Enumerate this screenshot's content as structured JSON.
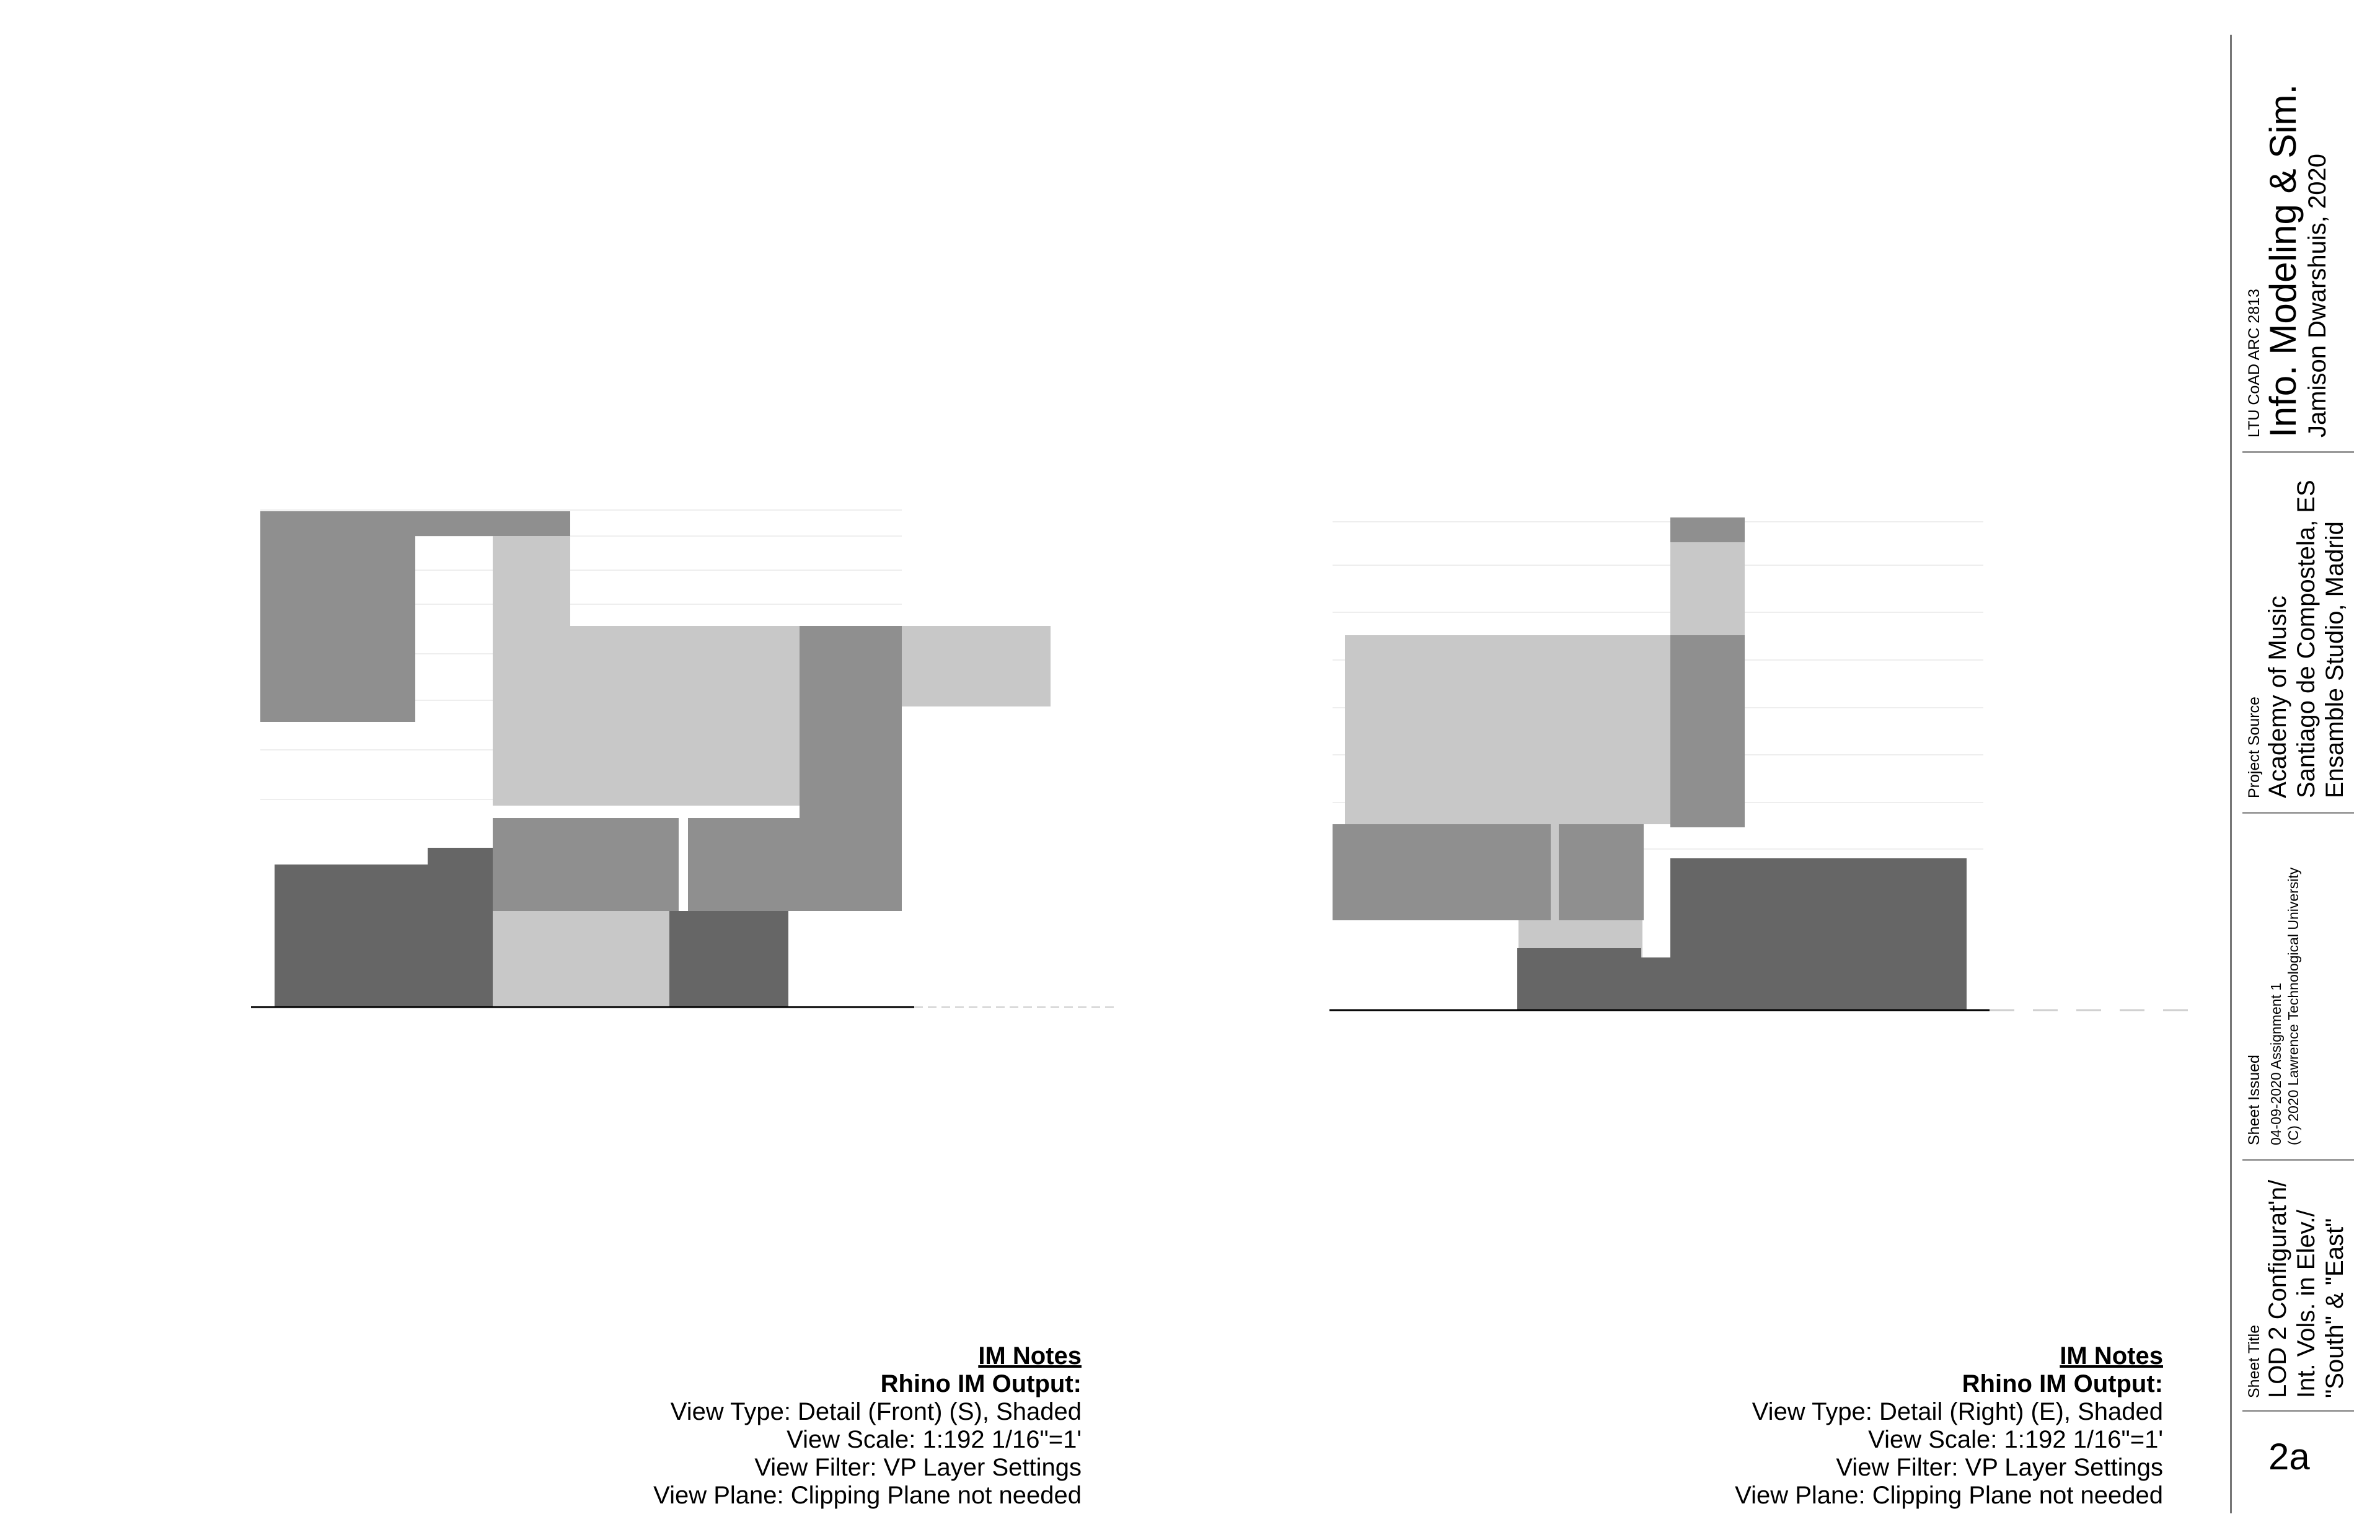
{
  "elevations": [
    {
      "view": "Front (S)",
      "notes": {
        "heading": "IM Notes",
        "subheading": "Rhino IM Output:",
        "lines": [
          "View Type: Detail (Front) (S), Shaded",
          "View Scale: 1:192 1/16\"=1'",
          "View Filter: VP Layer Settings",
          "View Plane: Clipping Plane not needed"
        ]
      }
    },
    {
      "view": "Right (E)",
      "notes": {
        "heading": "IM Notes",
        "subheading": "Rhino IM Output:",
        "lines": [
          "View Type: Detail (Right) (E), Shaded",
          "View Scale: 1:192 1/16\"=1'",
          "View Filter: VP Layer Settings",
          "View Plane: Clipping Plane not needed"
        ]
      }
    }
  ],
  "title_block": {
    "course": "LTU CoAD ARC 2813",
    "class_title": "Info. Modeling & Sim.",
    "instructor": "Jamison Dwarshuis, 2020",
    "project_source_label": "Project Source",
    "project_source": [
      "Academy of Music",
      "Santiago de Compostela, ES",
      "Ensamble Studio, Madrid"
    ],
    "sheet_issued_label": "Sheet Issued",
    "sheet_issued": [
      "04-09-2020 Assignment 1",
      "(C) 2020 Lawrence Technological University"
    ],
    "sheet_title_label": "Sheet Title",
    "sheet_title": [
      "LOD 2 Configurat'n/",
      "Int. Vols. in Elev./",
      "\"South\" & \"East\""
    ],
    "sheet_number": "2a"
  },
  "colors": {
    "dark": "#666666",
    "mid": "#8f8f8f",
    "light": "#c8c8c8",
    "rule": "#777777"
  }
}
